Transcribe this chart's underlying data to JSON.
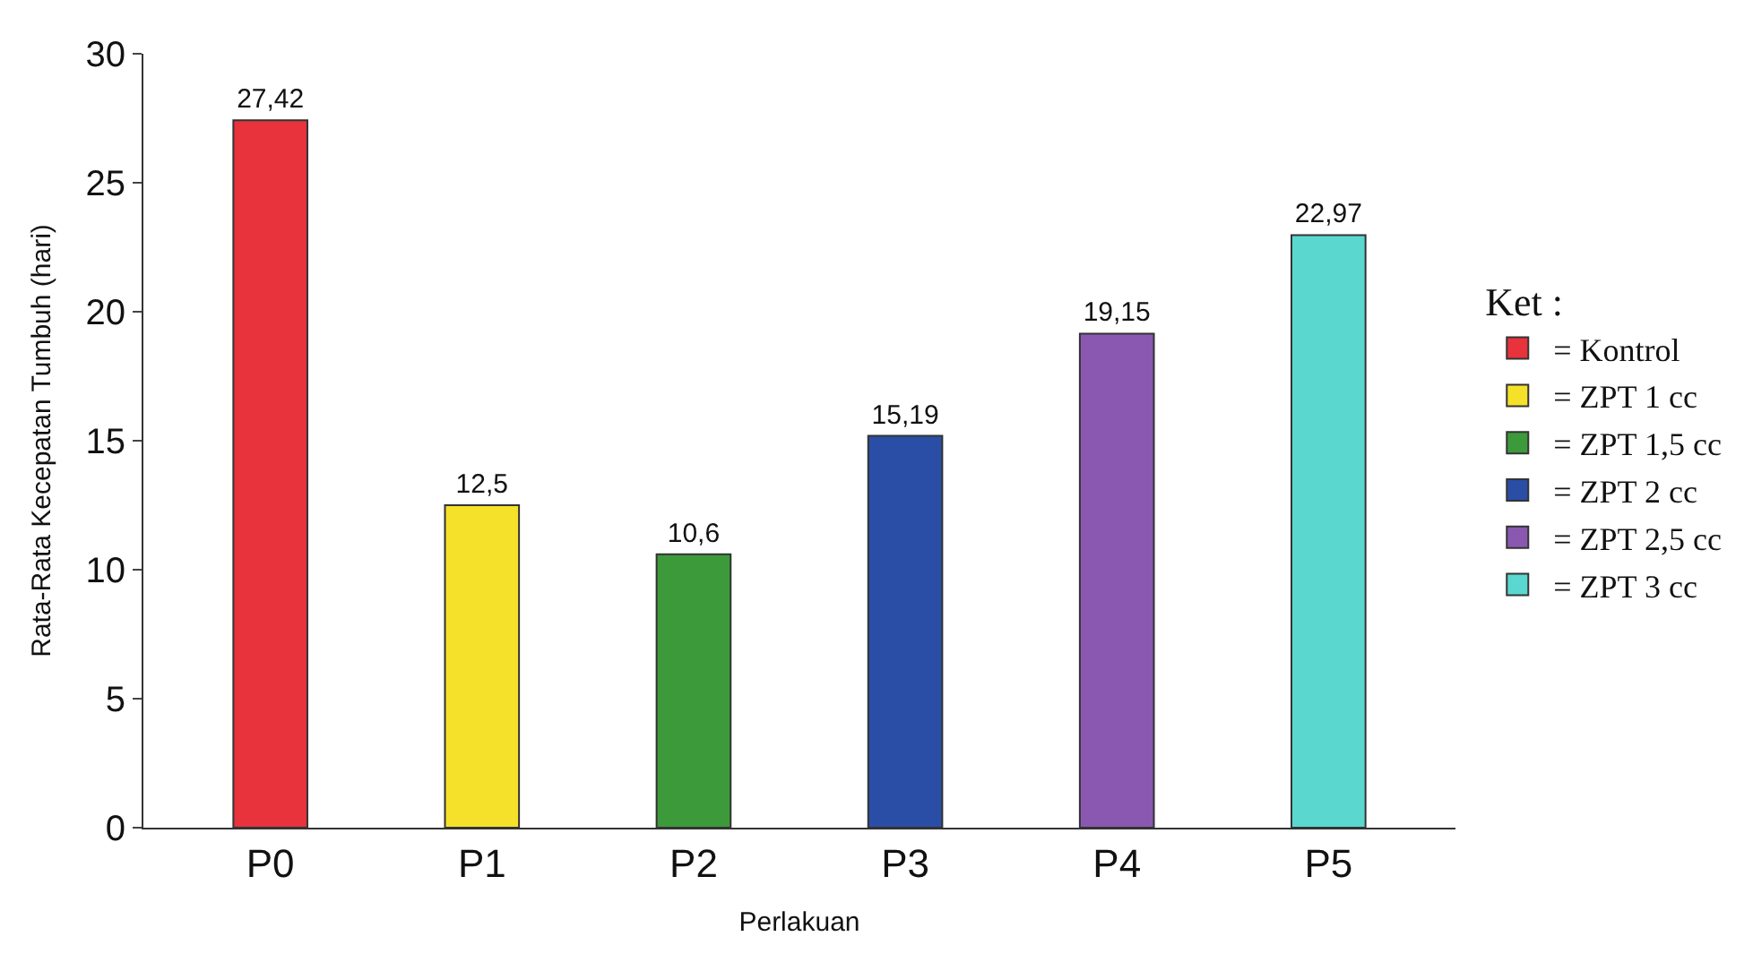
{
  "chart_data": {
    "type": "bar",
    "xlabel": "Perlakuan",
    "ylabel": "Rata-Rata Kecepatan Tumbuh (hari)",
    "legend_title": "Ket :",
    "categories": [
      "P0",
      "P1",
      "P2",
      "P3",
      "P4",
      "P5"
    ],
    "series": [
      {
        "name": "= Kontrol",
        "color": "#e8323c",
        "values": [
          27.42,
          null,
          null,
          null,
          null,
          null
        ]
      },
      {
        "name": "= ZPT 1 cc",
        "color": "#f5e12a",
        "values": [
          null,
          12.5,
          null,
          null,
          null,
          null
        ]
      },
      {
        "name": "= ZPT 1,5 cc",
        "color": "#3c9a3a",
        "values": [
          null,
          null,
          10.6,
          null,
          null,
          null
        ]
      },
      {
        "name": "= ZPT 2 cc",
        "color": "#2a4ea6",
        "values": [
          null,
          null,
          null,
          15.19,
          null,
          null
        ]
      },
      {
        "name": "= ZPT 2,5 cc",
        "color": "#8a58b0",
        "values": [
          null,
          null,
          null,
          null,
          19.15,
          null
        ]
      },
      {
        "name": "= ZPT 3 cc",
        "color": "#5ad8d0",
        "values": [
          null,
          null,
          null,
          null,
          null,
          22.97
        ]
      }
    ],
    "value_labels": [
      "27,42",
      "12,5",
      "10,6",
      "15,19",
      "19,15",
      "22,97"
    ],
    "ylim": [
      0,
      30
    ],
    "yticks": [
      0,
      5,
      10,
      15,
      20,
      25,
      30
    ],
    "legend": "right"
  }
}
